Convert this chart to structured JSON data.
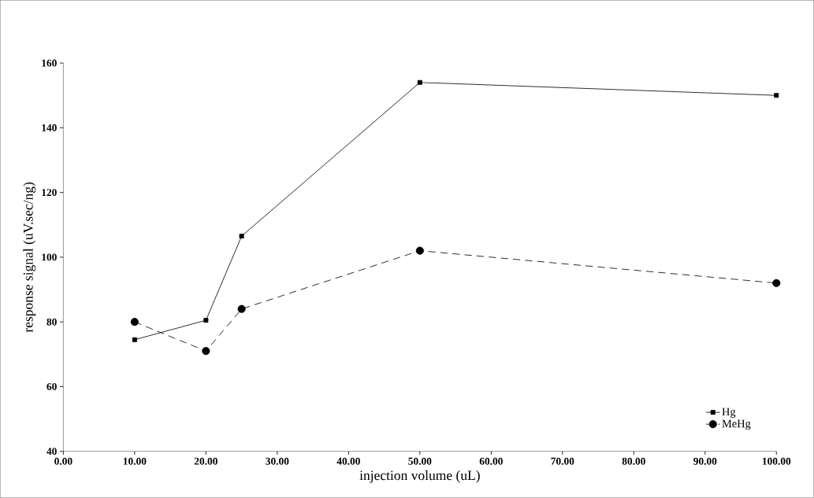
{
  "chart_data": {
    "type": "line",
    "xlabel": "injection volume (uL)",
    "ylabel": "response signal (uV.sec/ng)",
    "xlim": [
      0,
      100
    ],
    "ylim": [
      40,
      160
    ],
    "xticks": [
      {
        "value": 0,
        "label": "0.00"
      },
      {
        "value": 10,
        "label": "10.00"
      },
      {
        "value": 20,
        "label": "20.00"
      },
      {
        "value": 30,
        "label": "30.00"
      },
      {
        "value": 40,
        "label": "40.00"
      },
      {
        "value": 50,
        "label": "50.00"
      },
      {
        "value": 60,
        "label": "60.00"
      },
      {
        "value": 70,
        "label": "70.00"
      },
      {
        "value": 80,
        "label": "80.00"
      },
      {
        "value": 90,
        "label": "90.00"
      },
      {
        "value": 100,
        "label": "100.00"
      }
    ],
    "yticks": [
      40,
      60,
      80,
      100,
      120,
      140,
      160
    ],
    "x": [
      10,
      20,
      25,
      50,
      100
    ],
    "series": [
      {
        "name": "Hg",
        "color": "#000000",
        "values": [
          74.5,
          80.5,
          106.5,
          154,
          150
        ],
        "marker": "square",
        "line_style": "solid"
      },
      {
        "name": "MeHg",
        "color": "#000000",
        "values": [
          80,
          71,
          84,
          102,
          92
        ],
        "marker": "circle",
        "line_style": "dashed"
      }
    ],
    "grid": false,
    "legend": "bottom right"
  }
}
